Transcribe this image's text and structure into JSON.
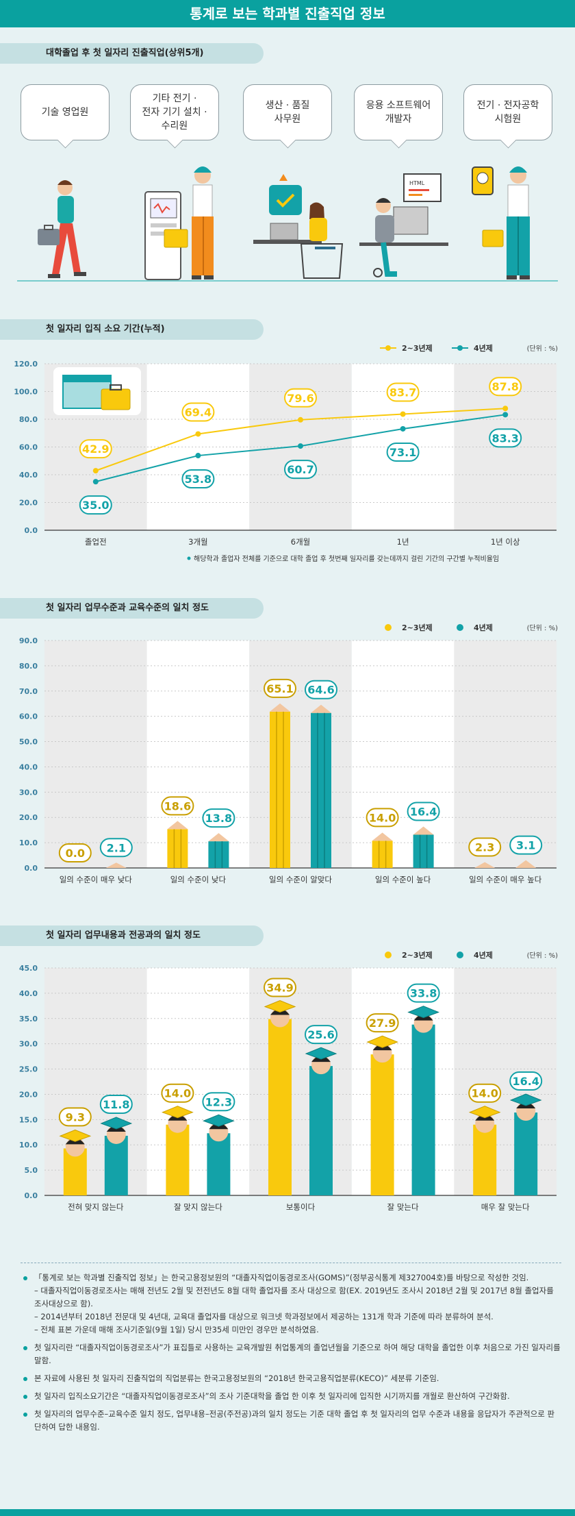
{
  "header": {
    "title": "통계로 보는 학과별 진출직업 정보"
  },
  "section1": {
    "title": "대학졸업 후 첫 일자리 진출직업(상위5개)",
    "jobs": [
      [
        "기술 영업원"
      ],
      [
        "기타 전기 ·",
        "전자 기기 설치 ·",
        "수리원"
      ],
      [
        "생산 · 품질",
        "사무원"
      ],
      [
        "응용 소프트웨어",
        "개발자"
      ],
      [
        "전기 · 전자공학",
        "시험원"
      ]
    ]
  },
  "section2": {
    "title": "첫 일자리 입직 소요 기간(누적)"
  },
  "section3": {
    "title": "첫 일자리 업무수준과 교육수준의 일치 정도"
  },
  "section4": {
    "title": "첫 일자리 업무내용과 전공과의 일치 정도"
  },
  "colors": {
    "yellow": "#f9c90d",
    "teal": "#13a2a8",
    "accent": "#0aa19f"
  },
  "chart_data": [
    {
      "type": "line",
      "categories": [
        "졸업전",
        "3개월",
        "6개월",
        "1년",
        "1년 이상"
      ],
      "series": [
        {
          "name": "2~3년제",
          "values": [
            42.9,
            69.4,
            79.6,
            83.7,
            87.8
          ]
        },
        {
          "name": "4년제",
          "values": [
            35.0,
            53.8,
            60.7,
            73.1,
            83.3
          ]
        }
      ],
      "unit": "(단위 : %)",
      "yticks": [
        "0.0",
        "20.0",
        "40.0",
        "60.0",
        "80.0",
        "100.0",
        "120.0"
      ],
      "ylim": [
        0,
        120
      ],
      "note": "해당학과 졸업자 전체를 기준으로 대학 졸업 후 첫번째 일자리를 갖는데까지 걸린 기간의 구간별 누적비율임",
      "icons": [
        "calendar-icon",
        "briefcase-icon"
      ]
    },
    {
      "type": "bar",
      "categories": [
        "일의 수준이 매우 낮다",
        "일의 수준이 낮다",
        "일의 수준이 알맞다",
        "일의 수준이 높다",
        "일의 수준이 매우 높다"
      ],
      "series": [
        {
          "name": "2~3년제",
          "values": [
            0.0,
            18.6,
            65.1,
            14.0,
            2.3
          ]
        },
        {
          "name": "4년제",
          "values": [
            2.1,
            13.8,
            64.6,
            16.4,
            3.1
          ]
        }
      ],
      "unit": "(단위 : %)",
      "yticks": [
        "0.0",
        "10.0",
        "20.0",
        "30.0",
        "40.0",
        "50.0",
        "60.0",
        "70.0",
        "80.0",
        "90.0"
      ],
      "ylim": [
        0,
        90
      ],
      "bar_style": "pencil"
    },
    {
      "type": "bar",
      "categories": [
        "전혀 맞지 않는다",
        "잘 맞지 않는다",
        "보통이다",
        "잘 맞는다",
        "매우 잘 맞는다"
      ],
      "series": [
        {
          "name": "2~3년제",
          "values": [
            9.3,
            14.0,
            34.9,
            27.9,
            14.0
          ]
        },
        {
          "name": "4년제",
          "values": [
            11.8,
            12.3,
            25.6,
            33.8,
            16.4
          ]
        }
      ],
      "unit": "(단위 : %)",
      "yticks": [
        "0.0",
        "5.0",
        "10.0",
        "15.0",
        "20.0",
        "25.0",
        "30.0",
        "35.0",
        "40.0",
        "45.0"
      ],
      "ylim": [
        0,
        45
      ],
      "bar_style": "graduate"
    }
  ],
  "notes": [
    {
      "text": "「통계로 보는 학과별 진출직업 정보」는 한국고용정보원의 “대졸자직업이동경로조사(GOMS)”(정부공식통계 제327004호)를 바탕으로 작성한 것임.",
      "subs": [
        "– 대졸자직업이동경로조사는 매해 전년도 2월 및 전전년도 8월 대학 졸업자를 조사 대상으로 함(EX. 2019년도 조사시 2018년 2월 및 2017년 8월 졸업자를 조사대상으로 함).",
        "– 2014년부터 2018년 전문대 및 4년대, 교육대 졸업자를 대상으로 워크넷 학과정보에서 제공하는 131개 학과 기준에 따라 분류하여 분석.",
        "– 전체 표본 가운데 매해 조사기준일(9월 1일) 당시 만35세 미만인 경우만 분석하였음."
      ]
    },
    {
      "text": "첫 일자리란 “대졸자직업이동경로조사”가 표집틀로 사용하는 교육개발원 취업통계의 졸업년월을 기준으로 하여 해당 대학을 졸업한 이후 처음으로 가진 일자리를 말함.",
      "subs": []
    },
    {
      "text": "본 자료에 사용된 첫 일자리 진출직업의 직업분류는 한국고용정보원의 “2018년 한국고용직업분류(KECO)” 세분류 기준임.",
      "subs": []
    },
    {
      "text": "첫 일자리 입직소요기간은 “대졸자직업이동경로조사”의 조사 기준대학을 졸업 한 이후 첫 일자리에 입직한 시기까지를 개월로 환산하여 구간화함.",
      "subs": []
    },
    {
      "text": "첫 일자리의 업무수준–교육수준 일치 정도, 업무내용–전공(주전공)과의 일치 정도는 기준 대학 졸업 후 첫 일자리의 업무 수준과 내용을 응답자가 주관적으로 판단하여 답한 내용임.",
      "subs": []
    }
  ]
}
